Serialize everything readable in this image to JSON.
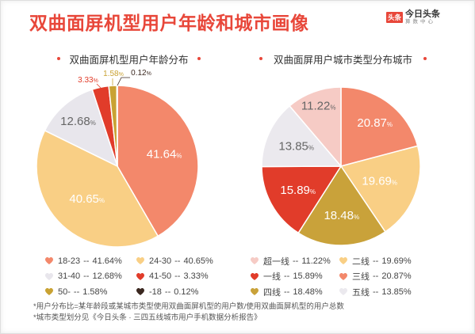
{
  "title": "双曲面屏机型用户年龄和城市画像",
  "logo": {
    "badge": "头条",
    "name": "今日头条",
    "sub": "算数中心"
  },
  "theme": {
    "accent": "#e8473a"
  },
  "chart_data": [
    {
      "type": "pie",
      "title": "双曲面屏机型用户年龄分布",
      "categories": [
        "18-23",
        "24-30",
        "31-40",
        "41-50",
        "50-",
        "-18"
      ],
      "values": [
        41.64,
        40.65,
        12.68,
        3.33,
        1.58,
        0.12
      ],
      "unit": "%",
      "colors": [
        "#f3886b",
        "#f9cf85",
        "#e8e6ec",
        "#e13c2a",
        "#c9a233",
        "#3b2820"
      ],
      "label_colors": [
        "#ffffff",
        "#ffffff",
        "#666666",
        "#e13c2a",
        "#c9a233",
        "#3b2820"
      ],
      "legend": "bottom",
      "legend_separator": "--"
    },
    {
      "type": "pie",
      "title": "双曲面屏用户城市类型分布城市",
      "categories": [
        "三线",
        "二线",
        "四线",
        "一线",
        "五线",
        "超一线"
      ],
      "values": [
        20.87,
        19.69,
        18.48,
        15.89,
        13.85,
        11.22
      ],
      "unit": "%",
      "colors": [
        "#f3886b",
        "#f9cf85",
        "#c9a23a",
        "#e13c2a",
        "#ebe9ee",
        "#f6cbc5"
      ],
      "label_colors": [
        "#ffffff",
        "#ffffff",
        "#ffffff",
        "#ffffff",
        "#666666",
        "#666666"
      ],
      "legend": "bottom",
      "legend_separator": "--"
    }
  ],
  "footnotes": [
    "*用户分布比=某年龄段或某城市类型使用双曲面屏机型的用户数/使用双曲面屏机型的用户总数",
    "*城市类型划分见《今日头条 · 三四五线城市用户手机数据分析报告》"
  ]
}
